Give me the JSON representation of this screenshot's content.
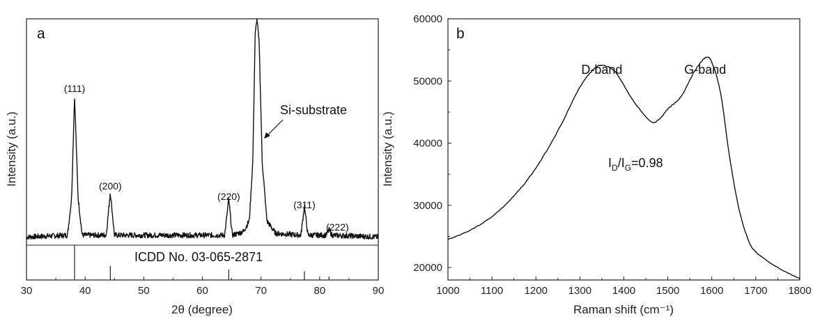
{
  "chart_data": [
    {
      "type": "line",
      "panel_label": "a",
      "xlabel": "2θ (degree)",
      "ylabel": "Intensity (a.u.)",
      "xlim": [
        30,
        90
      ],
      "x_ticks": [
        30,
        40,
        50,
        60,
        70,
        80,
        90
      ],
      "y_ticks_shown": false,
      "grid": false,
      "series": [
        {
          "x": [
            30,
            37,
            37.7,
            38.2,
            38.8,
            39.5,
            43.6,
            44.3,
            45.0,
            63.8,
            64.5,
            65.1,
            67.0,
            68.0,
            68.6,
            69.0,
            69.3,
            69.7,
            70.2,
            71.0,
            72.5,
            76.8,
            77.4,
            78.0,
            81.1,
            81.6,
            82.1,
            90
          ],
          "y": [
            0.03,
            0.04,
            0.25,
            0.82,
            0.25,
            0.04,
            0.04,
            0.28,
            0.04,
            0.04,
            0.24,
            0.04,
            0.06,
            0.12,
            0.45,
            1.15,
            1.25,
            1.1,
            0.45,
            0.12,
            0.05,
            0.04,
            0.2,
            0.04,
            0.04,
            0.07,
            0.04,
            0.03
          ]
        }
      ],
      "peak_labels": [
        {
          "text": "(111)",
          "x": 38.2
        },
        {
          "text": "(200)",
          "x": 44.3
        },
        {
          "text": "(220)",
          "x": 64.5
        },
        {
          "text": "(311)",
          "x": 77.4
        },
        {
          "text": "(222)",
          "x": 81.6
        }
      ],
      "annotation_text": "Si-substrate",
      "reference_label": "ICDD No. 03-065-2871",
      "reference_lines": [
        {
          "x": 38.2,
          "height": 1.0
        },
        {
          "x": 44.3,
          "height": 0.4
        },
        {
          "x": 64.5,
          "height": 0.3
        },
        {
          "x": 77.4,
          "height": 0.25
        },
        {
          "x": 81.6,
          "height": 0.1
        }
      ]
    },
    {
      "type": "line",
      "panel_label": "b",
      "xlabel": "Raman shift (cm⁻¹)",
      "ylabel": "Intensity (a.u.)",
      "xlim": [
        1000,
        1800
      ],
      "ylim": [
        18000,
        60000
      ],
      "x_ticks": [
        1000,
        1100,
        1200,
        1300,
        1400,
        1500,
        1600,
        1700,
        1800
      ],
      "y_ticks": [
        20000,
        30000,
        40000,
        50000,
        60000
      ],
      "grid": false,
      "series": [
        {
          "x": [
            1000,
            1050,
            1100,
            1150,
            1200,
            1250,
            1300,
            1330,
            1350,
            1380,
            1420,
            1460,
            1480,
            1500,
            1530,
            1560,
            1585,
            1600,
            1620,
            1640,
            1660,
            1680,
            1700,
            1750,
            1800
          ],
          "y": [
            24500,
            26000,
            28200,
            31500,
            36000,
            42000,
            49000,
            51800,
            52500,
            51500,
            47000,
            43500,
            43800,
            45500,
            47500,
            51500,
            53700,
            53000,
            48000,
            38000,
            30000,
            25000,
            22500,
            20000,
            18200
          ]
        }
      ],
      "peak_labels": [
        {
          "text": "D-band",
          "x": 1350
        },
        {
          "text": "G-band",
          "x": 1585
        }
      ],
      "ratio_annotation": {
        "lhs": "I",
        "sub1": "D",
        "sep": "/I",
        "sub2": "G",
        "rhs": "=0.98"
      }
    }
  ]
}
